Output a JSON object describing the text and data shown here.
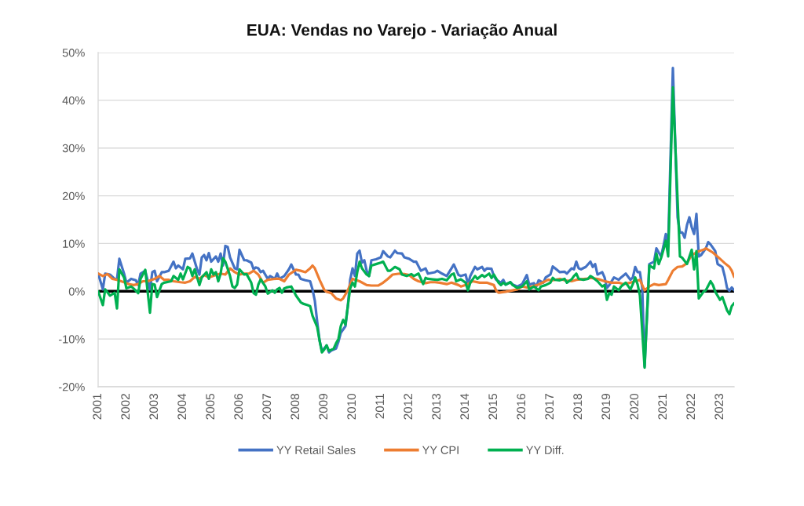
{
  "chart_data": {
    "type": "line",
    "title": "EUA: Vendas no Varejo - Variação Anual",
    "xlim": [
      "2001-01",
      "2023-07"
    ],
    "xticks": [
      "2001",
      "2002",
      "2003",
      "2004",
      "2005",
      "2006",
      "2007",
      "2008",
      "2009",
      "2010",
      "2011",
      "2012",
      "2013",
      "2014",
      "2015",
      "2016",
      "2017",
      "2018",
      "2019",
      "2020",
      "2021",
      "2022",
      "2023"
    ],
    "ylim": [
      -20,
      50
    ],
    "yticks": [
      {
        "value": -20,
        "label": "-20%"
      },
      {
        "value": -10,
        "label": "-10%"
      },
      {
        "value": 0,
        "label": "0%"
      },
      {
        "value": 10,
        "label": "10%"
      },
      {
        "value": 20,
        "label": "20%"
      },
      {
        "value": 30,
        "label": "30%"
      },
      {
        "value": 40,
        "label": "40%"
      },
      {
        "value": 50,
        "label": "50%"
      }
    ],
    "grid": "y",
    "legend": "bottom",
    "ref_lines": [
      {
        "axis": "y",
        "value": 0,
        "color": "#000000"
      }
    ],
    "series": [
      {
        "name": "YY Retail Sales",
        "color": "#4472c4",
        "x": [
          "2001-01",
          "2001-03",
          "2001-04",
          "2001-06",
          "2001-08",
          "2001-09",
          "2001-10",
          "2001-12",
          "2002-01",
          "2002-03",
          "2002-05",
          "2002-06",
          "2002-07",
          "2002-09",
          "2002-11",
          "2002-12",
          "2003-01",
          "2003-02",
          "2003-04",
          "2003-05",
          "2003-07",
          "2003-09",
          "2003-10",
          "2003-11",
          "2004-01",
          "2004-02",
          "2004-04",
          "2004-05",
          "2004-07",
          "2004-08",
          "2004-09",
          "2004-10",
          "2004-11",
          "2004-12",
          "2005-01",
          "2005-03",
          "2005-04",
          "2005-05",
          "2005-06",
          "2005-07",
          "2005-08",
          "2005-09",
          "2005-11",
          "2005-12",
          "2006-01",
          "2006-03",
          "2006-04",
          "2006-06",
          "2006-07",
          "2006-08",
          "2006-09",
          "2006-10",
          "2006-11",
          "2007-01",
          "2007-02",
          "2007-04",
          "2007-05",
          "2007-06",
          "2007-08",
          "2007-10",
          "2007-11",
          "2008-01",
          "2008-02",
          "2008-03",
          "2008-05",
          "2008-07",
          "2008-08",
          "2008-09",
          "2008-10",
          "2008-11",
          "2008-12",
          "2009-02",
          "2009-03",
          "2009-04",
          "2009-06",
          "2009-07",
          "2009-08",
          "2009-10",
          "2009-11",
          "2009-12",
          "2010-01",
          "2010-02",
          "2010-03",
          "2010-04",
          "2010-05",
          "2010-06",
          "2010-07",
          "2010-08",
          "2010-09",
          "2010-11",
          "2011-01",
          "2011-02",
          "2011-04",
          "2011-05",
          "2011-07",
          "2011-08",
          "2011-10",
          "2011-11",
          "2012-01",
          "2012-03",
          "2012-04",
          "2012-06",
          "2012-08",
          "2012-09",
          "2012-12",
          "2013-01",
          "2013-03",
          "2013-05",
          "2013-07",
          "2013-08",
          "2013-10",
          "2013-11",
          "2014-01",
          "2014-02",
          "2014-03",
          "2014-05",
          "2014-06",
          "2014-08",
          "2014-09",
          "2014-10",
          "2014-12",
          "2015-01",
          "2015-02",
          "2015-04",
          "2015-05",
          "2015-06",
          "2015-08",
          "2015-09",
          "2015-11",
          "2016-01",
          "2016-03",
          "2016-04",
          "2016-06",
          "2016-07",
          "2016-08",
          "2016-10",
          "2016-11",
          "2017-01",
          "2017-02",
          "2017-03",
          "2017-05",
          "2017-07",
          "2017-08",
          "2017-10",
          "2017-11",
          "2017-12",
          "2018-01",
          "2018-02",
          "2018-04",
          "2018-06",
          "2018-07",
          "2018-08",
          "2018-09",
          "2018-11",
          "2018-12",
          "2019-01",
          "2019-02",
          "2019-04",
          "2019-06",
          "2019-07",
          "2019-09",
          "2019-11",
          "2019-12",
          "2020-01",
          "2020-02",
          "2020-03",
          "2020-04",
          "2020-05",
          "2020-07",
          "2020-09",
          "2020-10",
          "2020-11",
          "2020-12",
          "2021-01",
          "2021-02",
          "2021-03",
          "2021-05",
          "2021-07",
          "2021-08",
          "2021-09",
          "2021-10",
          "2021-11",
          "2021-12",
          "2022-01",
          "2022-02",
          "2022-03",
          "2022-04",
          "2022-05",
          "2022-07",
          "2022-08",
          "2022-09",
          "2022-11",
          "2022-12",
          "2023-02",
          "2023-03",
          "2023-04",
          "2023-05",
          "2023-06",
          "2023-07"
        ],
        "values": [
          3.7,
          0.4,
          3.7,
          3.5,
          2.6,
          2.5,
          6.8,
          3.7,
          1.8,
          2.6,
          2.3,
          1.3,
          3.7,
          4.3,
          0.4,
          4.0,
          4.3,
          2.1,
          4.0,
          4.0,
          4.3,
          6.2,
          4.8,
          5.4,
          4.6,
          6.8,
          6.9,
          7.9,
          4.6,
          3.5,
          7.1,
          7.6,
          6.5,
          8.0,
          6.2,
          7.3,
          6.2,
          7.9,
          5.4,
          9.5,
          9.3,
          7.1,
          4.8,
          4.6,
          8.7,
          6.5,
          6.5,
          6.0,
          4.6,
          5.0,
          4.8,
          4.0,
          4.3,
          2.6,
          3.2,
          2.6,
          3.7,
          2.6,
          3.2,
          4.6,
          5.6,
          3.5,
          3.5,
          2.6,
          2.3,
          2.1,
          0.4,
          -2.0,
          -6.4,
          -10.3,
          -12.5,
          -11.4,
          -12.8,
          -12.4,
          -12.0,
          -10.6,
          -8.7,
          -7.3,
          -3.1,
          2.4,
          4.8,
          3.2,
          7.9,
          8.5,
          6.0,
          6.5,
          4.3,
          3.2,
          6.5,
          6.7,
          7.1,
          8.4,
          7.3,
          7.1,
          8.5,
          8.0,
          7.9,
          7.1,
          6.8,
          6.2,
          6.2,
          4.3,
          4.8,
          3.7,
          4.0,
          4.3,
          3.7,
          3.2,
          4.8,
          5.6,
          3.4,
          3.2,
          3.5,
          1.5,
          3.2,
          5.1,
          4.6,
          5.1,
          4.3,
          4.8,
          4.7,
          3.2,
          2.4,
          1.8,
          2.4,
          1.4,
          1.9,
          1.4,
          1.0,
          1.5,
          3.4,
          1.4,
          1.7,
          1.0,
          2.3,
          1.8,
          2.9,
          3.5,
          5.2,
          4.8,
          4.0,
          4.1,
          3.7,
          4.8,
          4.6,
          6.2,
          4.8,
          4.6,
          5.1,
          6.2,
          5.1,
          5.7,
          3.5,
          4.0,
          2.9,
          0.7,
          1.3,
          2.9,
          2.4,
          2.9,
          3.7,
          2.4,
          2.9,
          5.1,
          4.0,
          4.0,
          0.7,
          -15.7,
          5.7,
          6.2,
          9.0,
          8.1,
          7.3,
          9.5,
          12.0,
          9.5,
          46.8,
          15.5,
          12.3,
          12.3,
          11.2,
          13.9,
          15.5,
          13.4,
          12.0,
          16.2,
          7.3,
          7.6,
          9.0,
          10.3,
          9.8,
          8.4,
          5.7,
          5.1,
          3.2,
          0.7,
          0.1,
          0.8,
          0.2
        ]
      },
      {
        "name": "YY CPI",
        "color": "#ed7d31",
        "x": [
          "2001-01",
          "2001-03",
          "2001-05",
          "2001-07",
          "2001-09",
          "2001-12",
          "2002-02",
          "2002-04",
          "2002-06",
          "2002-08",
          "2002-10",
          "2003-01",
          "2003-03",
          "2003-05",
          "2003-07",
          "2003-09",
          "2003-12",
          "2004-02",
          "2004-04",
          "2004-06",
          "2004-08",
          "2004-10",
          "2004-12",
          "2005-03",
          "2005-05",
          "2005-07",
          "2005-09",
          "2005-11",
          "2006-01",
          "2006-03",
          "2006-05",
          "2006-07",
          "2006-09",
          "2006-11",
          "2007-01",
          "2007-04",
          "2007-06",
          "2007-08",
          "2007-10",
          "2008-01",
          "2008-03",
          "2008-05",
          "2008-07",
          "2008-08",
          "2008-09",
          "2008-11",
          "2009-01",
          "2009-02",
          "2009-04",
          "2009-06",
          "2009-08",
          "2009-09",
          "2009-11",
          "2010-01",
          "2010-04",
          "2010-07",
          "2010-09",
          "2010-12",
          "2011-02",
          "2011-04",
          "2011-06",
          "2011-09",
          "2011-11",
          "2012-01",
          "2012-03",
          "2012-05",
          "2012-08",
          "2012-10",
          "2012-12",
          "2013-02",
          "2013-05",
          "2013-07",
          "2013-10",
          "2013-11",
          "2014-02",
          "2014-04",
          "2014-07",
          "2014-10",
          "2015-01",
          "2015-02",
          "2015-03",
          "2015-06",
          "2015-09",
          "2015-11",
          "2016-01",
          "2016-03",
          "2016-05",
          "2016-08",
          "2016-10",
          "2016-12",
          "2017-02",
          "2017-05",
          "2017-07",
          "2017-10",
          "2017-12",
          "2018-04",
          "2018-06",
          "2018-09",
          "2018-12",
          "2019-03",
          "2019-06",
          "2019-08",
          "2019-11",
          "2020-01",
          "2020-03",
          "2020-04",
          "2020-05",
          "2020-07",
          "2020-09",
          "2020-11",
          "2021-02",
          "2021-03",
          "2021-05",
          "2021-07",
          "2021-09",
          "2021-11",
          "2022-01",
          "2022-04",
          "2022-06",
          "2022-07",
          "2022-09",
          "2022-10",
          "2023-01",
          "2023-03",
          "2023-05",
          "2023-06",
          "2023-07"
        ],
        "values": [
          3.7,
          3.2,
          3.6,
          2.6,
          2.4,
          1.9,
          1.5,
          1.3,
          1.5,
          2.1,
          2.1,
          2.6,
          3.2,
          2.4,
          2.4,
          2.1,
          1.9,
          1.8,
          2.1,
          3.0,
          2.6,
          3.4,
          2.9,
          3.4,
          3.7,
          3.5,
          4.8,
          4.0,
          3.5,
          3.7,
          3.7,
          4.3,
          3.5,
          1.8,
          2.4,
          2.6,
          2.6,
          2.1,
          3.5,
          4.5,
          4.3,
          4.0,
          4.8,
          5.4,
          4.8,
          2.4,
          0.3,
          -0.1,
          -0.4,
          -1.5,
          -1.9,
          -1.5,
          0.2,
          2.6,
          2.1,
          1.3,
          1.2,
          1.2,
          1.8,
          2.6,
          3.5,
          3.7,
          3.6,
          3.4,
          2.6,
          2.1,
          1.7,
          1.9,
          1.9,
          1.8,
          1.5,
          1.8,
          1.3,
          1.0,
          1.5,
          2.1,
          1.8,
          1.8,
          1.3,
          0.1,
          -0.3,
          -0.1,
          0.2,
          0.4,
          1.0,
          0.8,
          1.0,
          1.4,
          1.9,
          2.4,
          2.3,
          2.6,
          2.3,
          2.1,
          2.4,
          2.6,
          2.8,
          2.6,
          2.1,
          1.8,
          1.8,
          1.5,
          1.8,
          2.1,
          2.4,
          1.3,
          0.2,
          1.0,
          1.5,
          1.3,
          1.5,
          2.4,
          4.3,
          5.1,
          5.2,
          5.9,
          7.6,
          8.4,
          8.7,
          9.0,
          8.4,
          8.1,
          6.8,
          5.9,
          5.1,
          4.3,
          3.0
        ]
      },
      {
        "name": "YY Diff.",
        "color": "#00b050",
        "x": [
          "2001-01",
          "2001-03",
          "2001-04",
          "2001-06",
          "2001-08",
          "2001-09",
          "2001-10",
          "2001-12",
          "2002-01",
          "2002-03",
          "2002-04",
          "2002-06",
          "2002-07",
          "2002-09",
          "2002-11",
          "2002-12",
          "2003-01",
          "2003-02",
          "2003-04",
          "2003-05",
          "2003-08",
          "2003-09",
          "2003-11",
          "2003-12",
          "2004-01",
          "2004-03",
          "2004-04",
          "2004-05",
          "2004-06",
          "2004-08",
          "2004-09",
          "2004-11",
          "2004-12",
          "2005-01",
          "2005-02",
          "2005-03",
          "2005-04",
          "2005-05",
          "2005-06",
          "2005-07",
          "2005-09",
          "2005-10",
          "2005-11",
          "2005-12",
          "2006-01",
          "2006-03",
          "2006-04",
          "2006-06",
          "2006-07",
          "2006-08",
          "2006-09",
          "2006-10",
          "2006-12",
          "2007-01",
          "2007-03",
          "2007-04",
          "2007-05",
          "2007-06",
          "2007-07",
          "2007-08",
          "2007-09",
          "2007-11",
          "2008-01",
          "2008-03",
          "2008-04",
          "2008-06",
          "2008-07",
          "2008-08",
          "2008-10",
          "2008-11",
          "2008-12",
          "2009-01",
          "2009-02",
          "2009-03",
          "2009-05",
          "2009-06",
          "2009-07",
          "2009-08",
          "2009-09",
          "2009-10",
          "2009-11",
          "2009-12",
          "2010-01",
          "2010-02",
          "2010-03",
          "2010-04",
          "2010-05",
          "2010-07",
          "2010-08",
          "2010-09",
          "2010-11",
          "2011-01",
          "2011-02",
          "2011-04",
          "2011-05",
          "2011-07",
          "2011-09",
          "2011-10",
          "2011-12",
          "2012-02",
          "2012-03",
          "2012-05",
          "2012-07",
          "2012-08",
          "2012-09",
          "2012-11",
          "2013-01",
          "2013-03",
          "2013-05",
          "2013-07",
          "2013-08",
          "2013-09",
          "2013-11",
          "2014-01",
          "2014-02",
          "2014-03",
          "2014-05",
          "2014-06",
          "2014-08",
          "2014-09",
          "2014-11",
          "2014-12",
          "2015-01",
          "2015-03",
          "2015-04",
          "2015-05",
          "2015-06",
          "2015-08",
          "2015-09",
          "2015-11",
          "2016-01",
          "2016-03",
          "2016-04",
          "2016-06",
          "2016-08",
          "2016-09",
          "2016-11",
          "2017-01",
          "2017-02",
          "2017-03",
          "2017-05",
          "2017-07",
          "2017-08",
          "2017-10",
          "2017-11",
          "2017-12",
          "2018-01",
          "2018-03",
          "2018-05",
          "2018-06",
          "2018-07",
          "2018-09",
          "2018-11",
          "2018-12",
          "2019-01",
          "2019-02",
          "2019-03",
          "2019-04",
          "2019-06",
          "2019-07",
          "2019-09",
          "2019-11",
          "2019-12",
          "2020-01",
          "2020-02",
          "2020-03",
          "2020-05",
          "2020-07",
          "2020-09",
          "2020-10",
          "2020-11",
          "2020-12",
          "2021-01",
          "2021-02",
          "2021-03",
          "2021-05",
          "2021-08",
          "2021-09",
          "2021-11",
          "2022-01",
          "2022-02",
          "2022-03",
          "2022-04",
          "2022-06",
          "2022-07",
          "2022-09",
          "2022-10",
          "2022-11",
          "2023-01",
          "2023-02",
          "2023-04",
          "2023-05",
          "2023-06",
          "2023-07"
        ],
        "values": [
          0.0,
          -2.9,
          0.4,
          -0.9,
          -0.3,
          -3.6,
          4.6,
          2.9,
          0.6,
          1.0,
          0.6,
          -0.4,
          2.6,
          4.5,
          -4.5,
          1.5,
          1.4,
          -1.2,
          1.5,
          1.8,
          2.1,
          3.2,
          2.4,
          3.7,
          2.5,
          5.1,
          4.8,
          3.2,
          4.6,
          1.3,
          2.9,
          4.0,
          2.6,
          4.6,
          3.5,
          4.0,
          2.1,
          3.7,
          6.9,
          6.2,
          3.2,
          1.0,
          0.7,
          1.4,
          4.6,
          3.5,
          3.6,
          1.8,
          -0.4,
          -0.7,
          1.4,
          2.5,
          1.0,
          -0.5,
          0.2,
          -0.3,
          0.4,
          0.7,
          -0.3,
          0.6,
          0.8,
          1.0,
          -0.9,
          -2.3,
          -2.6,
          -2.9,
          -3.1,
          -5.1,
          -7.5,
          -10.3,
          -12.8,
          -12.2,
          -11.3,
          -12.5,
          -12.0,
          -10.9,
          -10.0,
          -7.3,
          -6.0,
          -7.0,
          -3.1,
          0.6,
          1.8,
          1.0,
          4.0,
          6.2,
          4.8,
          3.5,
          3.2,
          5.4,
          5.7,
          6.0,
          6.2,
          4.3,
          4.3,
          5.1,
          4.6,
          3.5,
          3.2,
          3.6,
          3.2,
          3.7,
          1.5,
          2.8,
          2.6,
          2.5,
          2.4,
          2.6,
          2.3,
          3.5,
          3.7,
          2.1,
          2.5,
          1.8,
          0.2,
          1.8,
          3.2,
          2.6,
          3.4,
          3.0,
          3.7,
          2.8,
          3.5,
          1.8,
          1.3,
          1.8,
          1.4,
          1.9,
          1.3,
          0.7,
          1.0,
          2.1,
          0.4,
          1.0,
          0.2,
          1.0,
          1.3,
          1.8,
          2.8,
          2.4,
          2.3,
          2.6,
          1.8,
          2.5,
          3.2,
          3.7,
          2.6,
          2.4,
          2.6,
          3.2,
          2.9,
          2.1,
          1.0,
          1.3,
          -1.8,
          -0.4,
          -0.7,
          1.0,
          0.2,
          1.0,
          1.8,
          0.4,
          1.5,
          2.9,
          1.5,
          -0.9,
          -16.0,
          5.4,
          4.8,
          7.9,
          5.7,
          7.0,
          8.7,
          10.6,
          7.3,
          42.7,
          7.3,
          7.0,
          5.7,
          8.7,
          4.6,
          8.4,
          -1.5,
          -0.1,
          0.2,
          2.1,
          1.3,
          -0.1,
          -1.8,
          -1.2,
          -4.0,
          -4.8,
          -3.1,
          -2.5
        ]
      }
    ]
  }
}
